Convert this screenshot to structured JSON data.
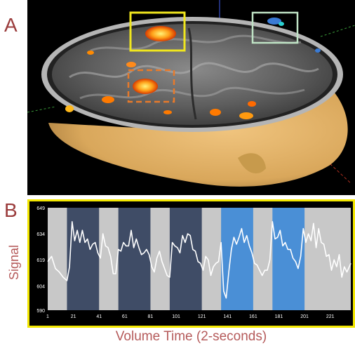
{
  "panels": {
    "a_label": "A",
    "b_label": "B"
  },
  "colors": {
    "frame": "#f2e600",
    "brain_bg": "#000000",
    "skin": "#d9a75b",
    "activation_hot": "#ff7a00",
    "activation_cold": "#3a7bd5",
    "roi_yellow": "#f0e61e",
    "roi_green": "#bfe3c5",
    "roi_orange": "#e87a2a",
    "block_task_dark": "#3f4c66",
    "block_task_blue": "#4a8fd6",
    "block_rest": "#c8c8c8",
    "signal_line": "#ffffff",
    "axis_label": "#b55a5a"
  },
  "chart_data": {
    "type": "line",
    "title": "",
    "xlabel": "Volume Time (2-seconds)",
    "ylabel": "Signal",
    "xlim": [
      1,
      237
    ],
    "ylim": [
      590,
      649
    ],
    "xticks": [
      1,
      21,
      41,
      61,
      81,
      101,
      121,
      141,
      161,
      181,
      201,
      221
    ],
    "yticks": [
      590,
      604,
      619,
      634,
      649
    ],
    "grid": false,
    "legend": "none",
    "blocks": [
      {
        "start": 16,
        "end": 41,
        "kind": "task-dark"
      },
      {
        "start": 56,
        "end": 81,
        "kind": "task-dark"
      },
      {
        "start": 96,
        "end": 121,
        "kind": "task-dark"
      },
      {
        "start": 136,
        "end": 161,
        "kind": "task-blue"
      },
      {
        "start": 176,
        "end": 201,
        "kind": "task-blue"
      }
    ],
    "series": [
      {
        "x": [
          1,
          4,
          7,
          10,
          13,
          16,
          18,
          20,
          22,
          24,
          26,
          28,
          30,
          32,
          34,
          36,
          38,
          40,
          42,
          44,
          46,
          48,
          50,
          52,
          54,
          56,
          58,
          60,
          62,
          64,
          66,
          68,
          70,
          72,
          74,
          76,
          78,
          80,
          82,
          84,
          86,
          88,
          90,
          92,
          94,
          96,
          98,
          100,
          102,
          104,
          106,
          108,
          110,
          112,
          114,
          116,
          118,
          120,
          122,
          124,
          126,
          128,
          130,
          132,
          134,
          136,
          138,
          140,
          142,
          144,
          146,
          148,
          150,
          152,
          154,
          156,
          158,
          160,
          162,
          164,
          166,
          168,
          170,
          172,
          174,
          176,
          178,
          180,
          182,
          184,
          186,
          188,
          190,
          192,
          194,
          196,
          198,
          200,
          202,
          204,
          206,
          208,
          210,
          212,
          214,
          216,
          218,
          220,
          222,
          224,
          226,
          228,
          230,
          232,
          234,
          237
        ],
        "y": [
          618,
          621,
          614,
          612,
          609,
          607,
          615,
          641,
          630,
          636,
          629,
          636,
          629,
          631,
          625,
          628,
          629,
          623,
          620,
          634,
          627,
          626,
          621,
          611,
          611,
          625,
          624,
          629,
          627,
          627,
          636,
          626,
          631,
          626,
          622,
          623,
          625,
          622,
          615,
          612,
          620,
          624,
          618,
          614,
          610,
          609,
          629,
          627,
          626,
          623,
          633,
          629,
          634,
          633,
          625,
          624,
          618,
          617,
          613,
          621,
          619,
          610,
          615,
          617,
          618,
          629,
          601,
          597,
          612,
          625,
          632,
          628,
          632,
          637,
          629,
          633,
          627,
          623,
          617,
          616,
          613,
          610,
          613,
          613,
          619,
          641,
          631,
          632,
          636,
          627,
          629,
          625,
          625,
          620,
          618,
          614,
          621,
          637,
          629,
          634,
          630,
          640,
          626,
          637,
          629,
          628,
          621,
          622,
          613,
          619,
          615,
          622,
          609,
          615,
          612,
          617
        ]
      }
    ]
  }
}
